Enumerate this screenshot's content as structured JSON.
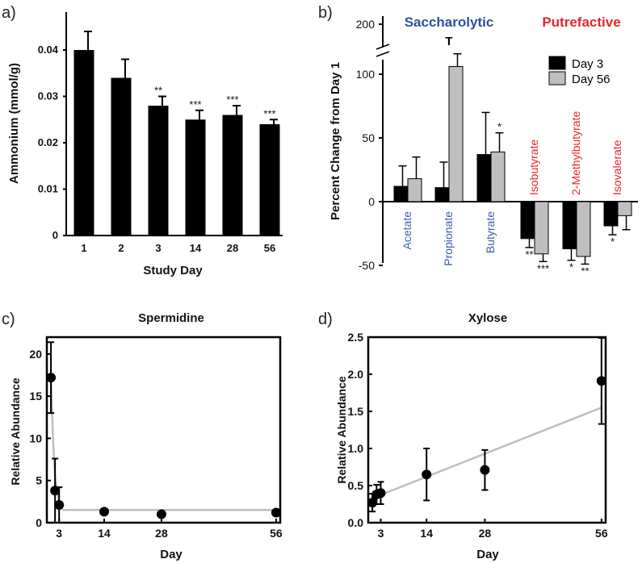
{
  "chart_data": [
    {
      "panel": "a)",
      "type": "bar",
      "xlabel": "Study Day",
      "ylabel": "Ammonium (mmol/g)",
      "ylim": [
        0,
        0.045
      ],
      "yticks": [
        "0",
        "0.01",
        "0.02",
        "0.03",
        "0.04"
      ],
      "categories": [
        "1",
        "2",
        "3",
        "14",
        "28",
        "56"
      ],
      "values": [
        0.04,
        0.034,
        0.028,
        0.025,
        0.026,
        0.024
      ],
      "errors": [
        0.004,
        0.004,
        0.002,
        0.002,
        0.002,
        0.001
      ],
      "significance": [
        "",
        "",
        "**",
        "***",
        "***",
        "***"
      ],
      "bar_color": "#000000"
    },
    {
      "panel": "b)",
      "type": "bar",
      "ylabel": "Percent Change from Day 1",
      "yticks": [
        "-50",
        "0",
        "50",
        "100",
        "200"
      ],
      "group_headers": [
        {
          "text": "Saccharolytic",
          "color": "#2e4f9c"
        },
        {
          "text": "Putrefactive",
          "color": "#e3262b"
        }
      ],
      "break_symbol": "T",
      "categories": [
        {
          "label": "Acetate",
          "color": "#3f5fa8"
        },
        {
          "label": "Propionate",
          "color": "#3f5fa8"
        },
        {
          "label": "Butyrate",
          "color": "#3f5fa8"
        },
        {
          "label": "Isobutyrate",
          "color": "#e3262b"
        },
        {
          "label": "2-Methylbutyrate",
          "color": "#e3262b"
        },
        {
          "label": "Isovalerate",
          "color": "#e3262b"
        }
      ],
      "series": [
        {
          "name": "Day 3",
          "color": "#000000",
          "values": [
            12,
            11,
            37,
            -29,
            -37,
            -19
          ],
          "errors": [
            16,
            20,
            33,
            7,
            9,
            7
          ],
          "significance": [
            "",
            "",
            "",
            "**",
            "*",
            "*"
          ]
        },
        {
          "name": "Day 56",
          "color": "#bfbfbf",
          "values": [
            18,
            106,
            39,
            -41,
            -43,
            -11
          ],
          "errors": [
            17,
            10,
            15,
            6,
            6,
            11
          ],
          "significance": [
            "",
            "",
            "*",
            "***",
            "**",
            ""
          ]
        }
      ],
      "legend_position": "top-right"
    },
    {
      "panel": "c)",
      "type": "scatter",
      "title": "Spermidine",
      "xlabel": "Day",
      "ylabel": "Relative Abundance",
      "xticks": [
        "3",
        "14",
        "28",
        "56"
      ],
      "yticks": [
        "0",
        "5",
        "10",
        "15",
        "20"
      ],
      "xlim": [
        0,
        57
      ],
      "ylim": [
        0,
        22
      ],
      "points": [
        {
          "x": 1,
          "y": 17.2,
          "err": 4.2
        },
        {
          "x": 2,
          "y": 3.8,
          "err": 3.8
        },
        {
          "x": 3,
          "y": 2.1,
          "err": 2.1
        },
        {
          "x": 14,
          "y": 1.3,
          "err": 0
        },
        {
          "x": 28,
          "y": 1.0,
          "err": 0
        },
        {
          "x": 56,
          "y": 1.2,
          "err": 0
        }
      ],
      "fit_line": [
        [
          1,
          17.2
        ],
        [
          1.5,
          10.0
        ],
        [
          2,
          5.5
        ],
        [
          3,
          2.2
        ],
        [
          4,
          1.5
        ],
        [
          56,
          1.5
        ]
      ],
      "fit_color": "#bdbdbd"
    },
    {
      "panel": "d)",
      "type": "scatter",
      "title": "Xylose",
      "xlabel": "Day",
      "ylabel": "Relative Abundance",
      "xticks": [
        "3",
        "14",
        "28",
        "56"
      ],
      "yticks": [
        "0.0",
        "0.5",
        "1.0",
        "1.5",
        "2.0",
        "2.5"
      ],
      "xlim": [
        0,
        57
      ],
      "ylim": [
        0,
        2.5
      ],
      "points": [
        {
          "x": 1,
          "y": 0.27,
          "err": 0.12
        },
        {
          "x": 2,
          "y": 0.38,
          "err": 0.13
        },
        {
          "x": 3,
          "y": 0.4,
          "err": 0.15
        },
        {
          "x": 14,
          "y": 0.65,
          "err": 0.35
        },
        {
          "x": 28,
          "y": 0.71,
          "err": 0.27
        },
        {
          "x": 56,
          "y": 1.91,
          "err": 0.58
        }
      ],
      "fit_line": [
        [
          1,
          0.33
        ],
        [
          56,
          1.55
        ]
      ],
      "fit_color": "#bdbdbd"
    }
  ]
}
